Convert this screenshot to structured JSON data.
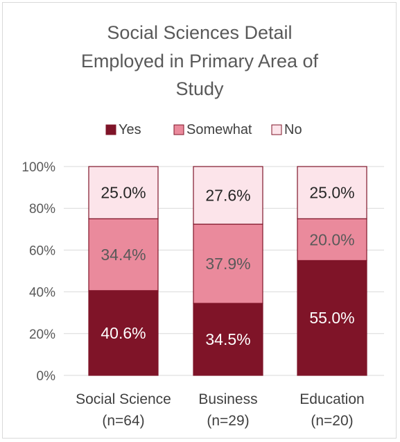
{
  "chart_data": {
    "type": "bar",
    "stacked": "percent",
    "title_lines": [
      "Social Sciences Detail",
      "Employed in Primary Area of",
      "Study"
    ],
    "categories": [
      {
        "name": "Social Science",
        "sub": "(n=64)"
      },
      {
        "name": "Business",
        "sub": "(n=29)"
      },
      {
        "name": "Education",
        "sub": "(n=20)"
      }
    ],
    "series": [
      {
        "name": "Yes",
        "values": [
          40.6,
          34.5,
          55.0
        ],
        "labels": [
          "40.6%",
          "34.5%",
          "55.0%"
        ],
        "color": "#7f1428",
        "label_color": "#ffffff"
      },
      {
        "name": "Somewhat",
        "values": [
          34.4,
          37.9,
          20.0
        ],
        "labels": [
          "34.4%",
          "37.9%",
          "20.0%"
        ],
        "color": "#ea8a9c",
        "label_color": "#595959"
      },
      {
        "name": "No",
        "values": [
          25.0,
          27.6,
          25.0
        ],
        "labels": [
          "25.0%",
          "27.6%",
          "25.0%"
        ],
        "color": "#fce4ea",
        "label_color": "#262626"
      }
    ],
    "ylim": [
      0,
      100
    ],
    "yticks": [
      "0%",
      "20%",
      "40%",
      "60%",
      "80%",
      "100%"
    ],
    "grid": true,
    "legend_position": "top",
    "bar_outline_color": "#7f1428",
    "grid_color": "#d9d9d9"
  }
}
